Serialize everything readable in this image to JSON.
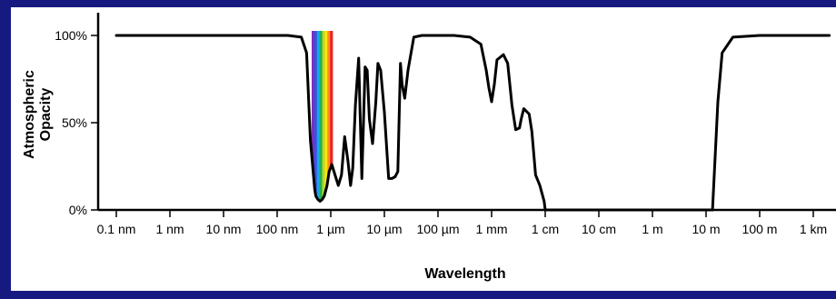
{
  "chart_data": {
    "type": "line",
    "title": "",
    "xlabel": "Wavelength",
    "ylabel_lines": [
      "Atmospheric",
      "Opacity"
    ],
    "x_scale": "log",
    "x_tick_labels": [
      "0.1 nm",
      "1 nm",
      "10 nm",
      "100 nm",
      "1 µm",
      "10 µm",
      "100 µm",
      "1 mm",
      "1 cm",
      "10 cm",
      "1 m",
      "10 m",
      "100 m",
      "1 km"
    ],
    "y_tick_labels": [
      "100%",
      "50%",
      "0%"
    ],
    "ylim": [
      0,
      100
    ],
    "visible_band": [
      "400 nm",
      "700 nm"
    ],
    "visible_band_colors": [
      "#7b2fbe",
      "#3b52e0",
      "#1aa6e8",
      "#22b04b",
      "#b6d43a",
      "#ffe600",
      "#ff8c1a",
      "#e8262a"
    ],
    "series": [
      {
        "x_decade": [
          -1,
          2.2,
          2.45,
          2.55,
          2.62,
          2.7,
          2.72,
          2.76,
          2.8,
          2.84,
          2.88,
          2.93,
          2.97,
          3.02,
          3.08,
          3.14,
          3.2,
          3.26,
          3.32,
          3.37,
          3.41,
          3.46,
          3.52,
          3.58,
          3.64,
          3.68,
          3.72,
          3.78,
          3.84,
          3.88,
          3.93,
          4.0,
          4.08,
          4.14,
          4.2,
          4.25,
          4.3,
          4.33,
          4.38,
          4.44,
          4.55,
          4.7,
          4.85,
          5.0,
          5.3,
          5.6,
          5.8,
          5.9,
          5.95,
          6.0,
          6.05,
          6.1,
          6.22,
          6.3,
          6.38,
          6.45,
          6.52,
          6.55,
          6.6,
          6.7,
          6.75,
          6.82,
          6.9,
          6.98,
          7.0,
          7.1,
          7.3,
          8.0,
          9.0,
          10.05,
          10.12,
          10.22,
          10.3,
          10.5,
          11,
          12,
          12.3
        ],
        "y_percent": [
          100,
          100,
          99,
          90,
          40,
          12,
          8,
          6,
          5,
          6,
          8,
          14,
          22,
          26,
          20,
          14,
          20,
          42,
          28,
          14,
          24,
          60,
          87,
          18,
          82,
          80,
          52,
          38,
          62,
          84,
          80,
          56,
          18,
          18,
          19,
          22,
          84,
          72,
          64,
          80,
          99,
          100,
          100,
          100,
          100,
          99,
          95,
          80,
          70,
          62,
          72,
          86,
          89,
          84,
          60,
          46,
          47,
          52,
          58,
          55,
          45,
          20,
          14,
          5,
          0,
          0,
          0,
          0,
          0,
          0,
          0,
          62,
          90,
          99,
          100,
          100,
          100
        ]
      }
    ]
  }
}
